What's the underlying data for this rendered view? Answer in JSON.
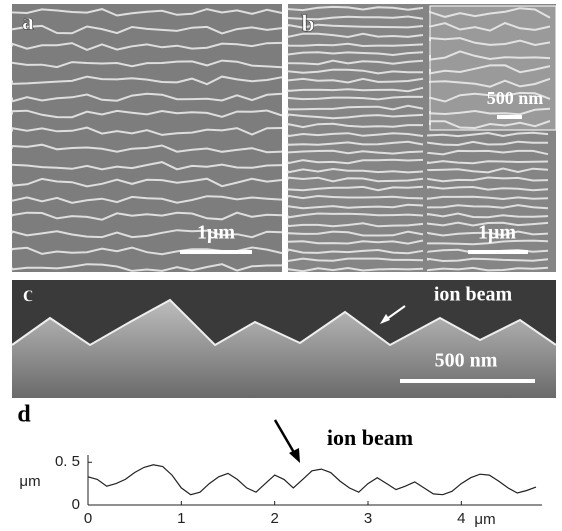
{
  "panels": {
    "a": {
      "label": "a",
      "scale_bar": "1μm"
    },
    "b": {
      "label": "b",
      "scale_bar": "1μm",
      "inset_scale_bar": "500 nm"
    },
    "c": {
      "label": "c",
      "scale_bar": "500 nm",
      "annotation": "ion beam"
    }
  },
  "chart_data": {
    "type": "line",
    "label": "d",
    "annotation": "ion beam",
    "x_label": "μm",
    "y_label": "μm",
    "x": [
      0,
      0.1,
      0.2,
      0.3,
      0.4,
      0.5,
      0.6,
      0.7,
      0.8,
      0.9,
      1,
      1.1,
      1.2,
      1.3,
      1.4,
      1.5,
      1.6,
      1.7,
      1.8,
      1.9,
      2,
      2.1,
      2.2,
      2.3,
      2.4,
      2.5,
      2.6,
      2.7,
      2.8,
      2.9,
      3,
      3.1,
      3.2,
      3.3,
      3.4,
      3.5,
      3.6,
      3.7,
      3.8,
      3.9,
      4,
      4.1,
      4.2,
      4.3,
      4.4,
      4.5,
      4.6,
      4.7,
      4.8
    ],
    "values": [
      0.33,
      0.3,
      0.22,
      0.25,
      0.3,
      0.38,
      0.44,
      0.47,
      0.45,
      0.35,
      0.2,
      0.12,
      0.15,
      0.25,
      0.33,
      0.37,
      0.3,
      0.2,
      0.15,
      0.25,
      0.35,
      0.3,
      0.2,
      0.3,
      0.4,
      0.42,
      0.38,
      0.28,
      0.2,
      0.15,
      0.25,
      0.32,
      0.25,
      0.18,
      0.22,
      0.27,
      0.2,
      0.13,
      0.12,
      0.16,
      0.25,
      0.32,
      0.36,
      0.35,
      0.28,
      0.2,
      0.14,
      0.17,
      0.21
    ],
    "color": "#222",
    "xlim": [
      0,
      4.8
    ],
    "ylim": [
      0,
      0.55
    ],
    "xticks": [
      0,
      1,
      2,
      3,
      4
    ],
    "yticks": [
      0,
      {
        "value": 0.5,
        "label": "0. 5"
      }
    ]
  }
}
